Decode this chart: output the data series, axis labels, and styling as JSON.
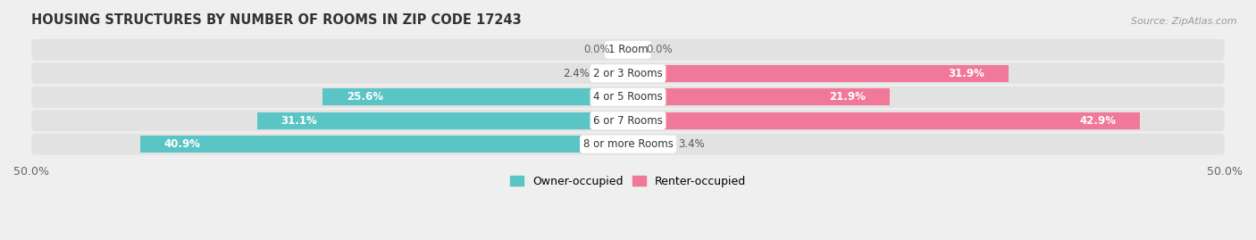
{
  "title": "HOUSING STRUCTURES BY NUMBER OF ROOMS IN ZIP CODE 17243",
  "source": "Source: ZipAtlas.com",
  "categories": [
    "1 Room",
    "2 or 3 Rooms",
    "4 or 5 Rooms",
    "6 or 7 Rooms",
    "8 or more Rooms"
  ],
  "owner_values": [
    0.0,
    2.4,
    25.6,
    31.1,
    40.9
  ],
  "renter_values": [
    0.0,
    31.9,
    21.9,
    42.9,
    3.4
  ],
  "owner_color": "#5bc4c4",
  "renter_color": "#f07898",
  "renter_color_light": "#f4aabb",
  "bar_height": 0.72,
  "axis_limit": 50.0,
  "background_color": "#efefef",
  "row_bg_color": "#e2e2e2",
  "title_fontsize": 10.5,
  "label_fontsize": 8.5,
  "category_fontsize": 8.5,
  "legend_fontsize": 9,
  "source_fontsize": 8
}
